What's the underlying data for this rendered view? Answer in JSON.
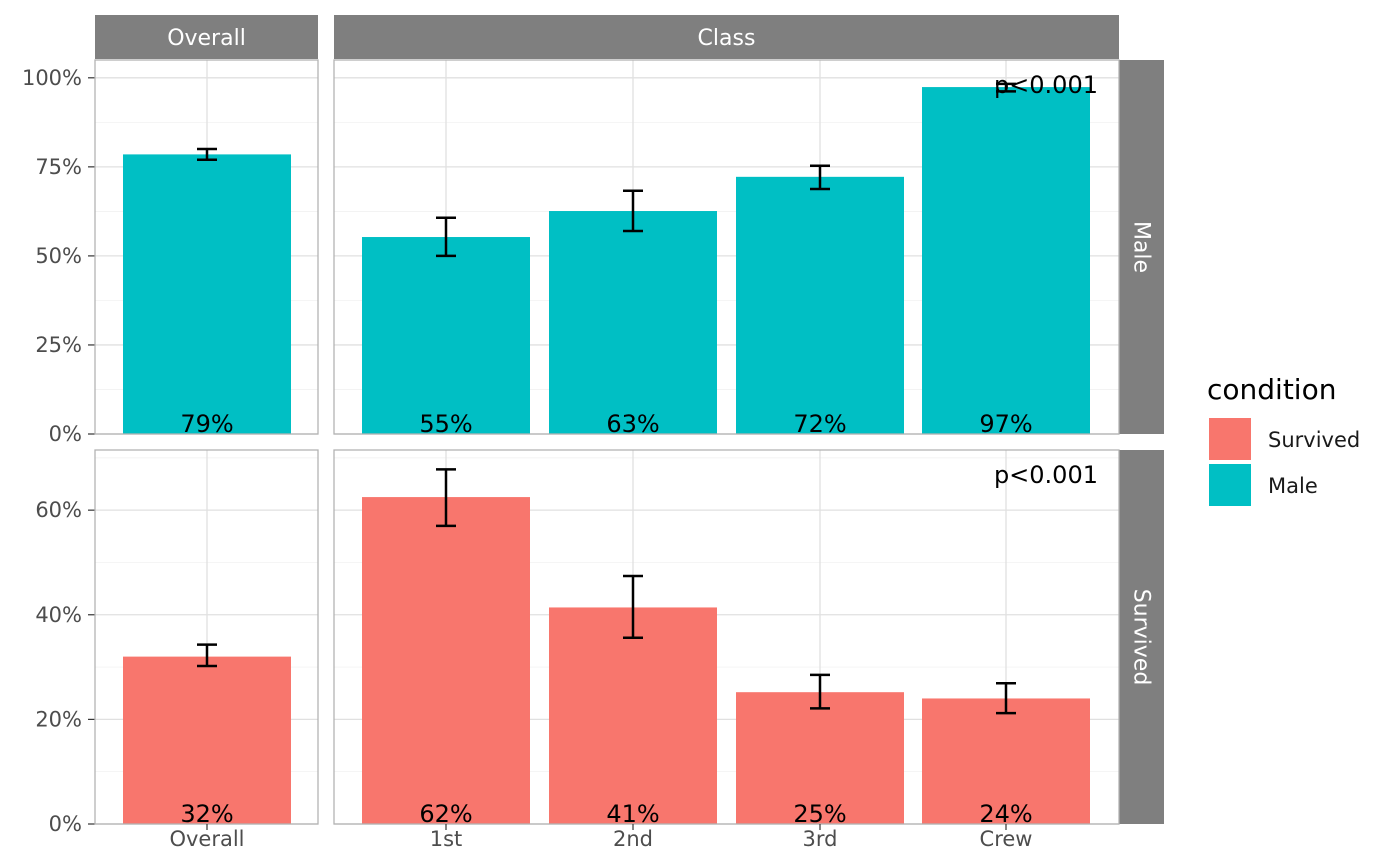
{
  "chart_data": {
    "type": "bar",
    "column_facets": [
      "Overall",
      "Class"
    ],
    "row_facets": [
      {
        "label": "Male",
        "series": "Male",
        "ylim": [
          0,
          1.05
        ],
        "y_ticks": [
          0,
          0.25,
          0.5,
          0.75,
          1.0
        ],
        "y_tick_labels": [
          "0%",
          "25%",
          "50%",
          "75%",
          "100%"
        ],
        "p_value": "p<0.001",
        "overall": {
          "category": "Overall",
          "value": 0.785,
          "ci": [
            0.77,
            0.8
          ],
          "label": "79%"
        },
        "categories": [
          "1st",
          "2nd",
          "3rd",
          "Crew"
        ],
        "values": [
          0.553,
          0.626,
          0.722,
          0.974
        ],
        "ci": [
          [
            0.5,
            0.607
          ],
          [
            0.57,
            0.683
          ],
          [
            0.688,
            0.753
          ],
          [
            0.962,
            0.983
          ]
        ],
        "labels": [
          "55%",
          "63%",
          "72%",
          "97%"
        ]
      },
      {
        "label": "Survived",
        "series": "Survived",
        "ylim": [
          0,
          0.715
        ],
        "y_ticks": [
          0,
          0.2,
          0.4,
          0.6
        ],
        "y_tick_labels": [
          "0%",
          "20%",
          "40%",
          "60%"
        ],
        "p_value": "p<0.001",
        "overall": {
          "category": "Overall",
          "value": 0.32,
          "ci": [
            0.302,
            0.343
          ],
          "label": "32%"
        },
        "categories": [
          "1st",
          "2nd",
          "3rd",
          "Crew"
        ],
        "values": [
          0.625,
          0.414,
          0.252,
          0.24
        ],
        "ci": [
          [
            0.57,
            0.678
          ],
          [
            0.356,
            0.474
          ],
          [
            0.221,
            0.285
          ],
          [
            0.212,
            0.269
          ]
        ],
        "labels": [
          "62%",
          "41%",
          "25%",
          "24%"
        ]
      }
    ],
    "x_tick_labels": {
      "overall": [
        "Overall"
      ],
      "class": [
        "1st",
        "2nd",
        "3rd",
        "Crew"
      ]
    },
    "legend": {
      "title": "condition",
      "position": "right",
      "items": [
        {
          "label": "Survived",
          "color": "#F8766D"
        },
        {
          "label": "Male",
          "color": "#00BFC4"
        }
      ]
    },
    "grid": true
  }
}
